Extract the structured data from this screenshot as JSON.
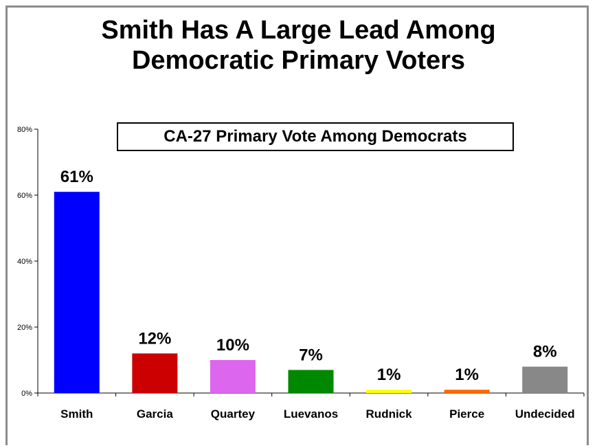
{
  "chart_data": {
    "type": "bar",
    "title": "Smith Has A Large Lead Among Democratic Primary Voters",
    "title_lines": [
      "Smith Has A Large Lead Among",
      "Democratic Primary Voters"
    ],
    "subtitle": "CA-27 Primary Vote Among Democrats",
    "categories": [
      "Smith",
      "Garcia",
      "Quartey",
      "Luevanos",
      "Rudnick",
      "Pierce",
      "Undecided"
    ],
    "values": [
      61,
      12,
      10,
      7,
      1,
      1,
      8
    ],
    "data_labels": [
      "61%",
      "12%",
      "10%",
      "7%",
      "1%",
      "1%",
      "8%"
    ],
    "colors": [
      "#0000ff",
      "#cc0000",
      "#dd66ee",
      "#008800",
      "#ffff00",
      "#ff6600",
      "#888888"
    ],
    "ylim": [
      0,
      80
    ],
    "yticks": [
      0,
      20,
      40,
      60,
      80
    ],
    "ytick_labels": [
      "0%",
      "20%",
      "40%",
      "60%",
      "80%"
    ],
    "xlabel": "",
    "ylabel": "",
    "grid": false,
    "legend": "none"
  }
}
